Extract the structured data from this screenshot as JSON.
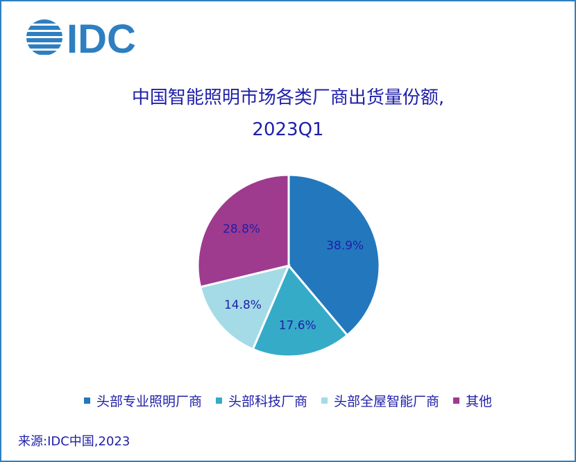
{
  "logo_text": "IDC",
  "chart_data": {
    "type": "pie",
    "title": "中国智能照明市场各类厂商出货量份额,",
    "subtitle": "2023Q1",
    "categories": [
      "头部专业照明厂商",
      "头部科技厂商",
      "头部全屋智能厂商",
      "其他"
    ],
    "values": [
      38.9,
      17.6,
      14.8,
      28.8
    ],
    "value_labels": [
      "38.9%",
      "17.6%",
      "14.8%",
      "28.8%"
    ],
    "colors": [
      "#2378bd",
      "#35abc8",
      "#a4dbe6",
      "#9e3b8e"
    ],
    "legend_position": "bottom"
  },
  "colors": {
    "brand": "#2e7fc1",
    "text": "#1f1fa8"
  },
  "source": "来源:IDC中国,2023"
}
